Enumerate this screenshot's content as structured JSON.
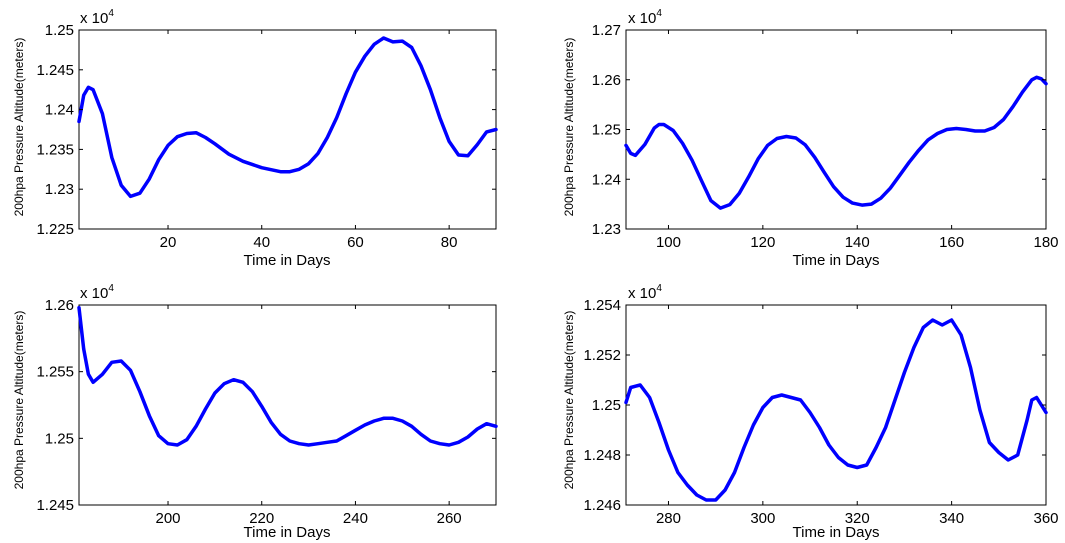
{
  "figure": {
    "background": "#ffffff",
    "line_color": "#0000ff"
  },
  "chart_data": [
    {
      "type": "line",
      "title": "",
      "xlabel": "Time in Days",
      "ylabel": "200hpa Pressure Altitude(meters)",
      "multiplier": "x 10",
      "multiplier_exp": "4",
      "xlim": [
        1,
        90
      ],
      "ylim": [
        1.225,
        1.25
      ],
      "xticks": [
        20,
        40,
        60,
        80
      ],
      "yticks": [
        1.225,
        1.23,
        1.235,
        1.24,
        1.245,
        1.25
      ],
      "ytick_labels": [
        "1.225",
        "1.23",
        "1.235",
        "1.24",
        "1.245",
        "1.25"
      ],
      "grid": false,
      "series": [
        {
          "x": [
            1,
            2,
            3,
            4,
            6,
            8,
            10,
            12,
            14,
            16,
            18,
            20,
            22,
            24,
            26,
            28,
            30,
            33,
            36,
            40,
            44,
            46,
            48,
            50,
            52,
            54,
            56,
            58,
            60,
            62,
            64,
            66,
            68,
            70,
            72,
            74,
            76,
            78,
            80,
            82,
            84,
            86,
            88,
            90
          ],
          "values": [
            1.2385,
            1.2418,
            1.2428,
            1.2425,
            1.2395,
            1.234,
            1.2305,
            1.2291,
            1.2295,
            1.2313,
            1.2337,
            1.2355,
            1.2366,
            1.237,
            1.2371,
            1.2365,
            1.2357,
            1.2344,
            1.2335,
            1.2327,
            1.2322,
            1.2322,
            1.2325,
            1.2332,
            1.2345,
            1.2365,
            1.239,
            1.242,
            1.2447,
            1.2467,
            1.2482,
            1.249,
            1.2485,
            1.2486,
            1.2478,
            1.2455,
            1.2425,
            1.239,
            1.236,
            1.2343,
            1.2342,
            1.2356,
            1.2372,
            1.2375
          ]
        }
      ]
    },
    {
      "type": "line",
      "title": "",
      "xlabel": "Time in Days",
      "ylabel": "200hpa Pressure Altitude(meters)",
      "multiplier": "x 10",
      "multiplier_exp": "4",
      "xlim": [
        91,
        180
      ],
      "ylim": [
        1.23,
        1.27
      ],
      "xticks": [
        100,
        120,
        140,
        160,
        180
      ],
      "yticks": [
        1.23,
        1.24,
        1.25,
        1.26,
        1.27
      ],
      "ytick_labels": [
        "1.23",
        "1.24",
        "1.25",
        "1.26",
        "1.27"
      ],
      "grid": false,
      "series": [
        {
          "x": [
            91,
            92,
            93,
            95,
            97,
            98,
            99,
            101,
            103,
            105,
            107,
            109,
            111,
            113,
            115,
            117,
            119,
            121,
            123,
            125,
            127,
            129,
            131,
            133,
            135,
            137,
            139,
            141,
            143,
            145,
            147,
            149,
            151,
            153,
            155,
            157,
            159,
            161,
            163,
            165,
            167,
            169,
            171,
            173,
            175,
            177,
            178,
            179,
            180
          ],
          "values": [
            1.2468,
            1.2452,
            1.2448,
            1.247,
            1.2503,
            1.251,
            1.251,
            1.2498,
            1.2472,
            1.2438,
            1.2397,
            1.2357,
            1.2342,
            1.2349,
            1.2372,
            1.2405,
            1.2441,
            1.2468,
            1.2482,
            1.2486,
            1.2483,
            1.2469,
            1.2444,
            1.2414,
            1.2385,
            1.2364,
            1.2352,
            1.2348,
            1.235,
            1.2362,
            1.2382,
            1.2408,
            1.2434,
            1.2458,
            1.2479,
            1.2492,
            1.25,
            1.2502,
            1.25,
            1.2497,
            1.2497,
            1.2504,
            1.252,
            1.2546,
            1.2575,
            1.26,
            1.2605,
            1.2602,
            1.2592
          ]
        }
      ]
    },
    {
      "type": "line",
      "title": "",
      "xlabel": "Time in Days",
      "ylabel": "200hpa Pressure Altitude(meters)",
      "multiplier": "x 10",
      "multiplier_exp": "4",
      "xlim": [
        181,
        270
      ],
      "ylim": [
        1.245,
        1.26
      ],
      "xticks": [
        200,
        220,
        240,
        260
      ],
      "yticks": [
        1.245,
        1.25,
        1.255,
        1.26
      ],
      "ytick_labels": [
        "1.245",
        "1.25",
        "1.255",
        "1.26"
      ],
      "grid": false,
      "series": [
        {
          "x": [
            181,
            182,
            183,
            184,
            186,
            188,
            190,
            192,
            194,
            196,
            198,
            200,
            202,
            204,
            206,
            208,
            210,
            212,
            214,
            216,
            218,
            220,
            222,
            224,
            226,
            228,
            230,
            232,
            234,
            236,
            238,
            240,
            242,
            244,
            246,
            248,
            250,
            252,
            254,
            256,
            258,
            260,
            262,
            264,
            266,
            268,
            270
          ],
          "values": [
            1.2598,
            1.2567,
            1.2548,
            1.2542,
            1.2548,
            1.2557,
            1.2558,
            1.2551,
            1.2535,
            1.2517,
            1.2502,
            1.2496,
            1.2495,
            1.2499,
            1.2509,
            1.2522,
            1.2534,
            1.2541,
            1.2544,
            1.2542,
            1.2535,
            1.2524,
            1.2512,
            1.2503,
            1.2498,
            1.2496,
            1.2495,
            1.2496,
            1.2497,
            1.2498,
            1.2502,
            1.2506,
            1.251,
            1.2513,
            1.2515,
            1.2515,
            1.2513,
            1.2509,
            1.2503,
            1.2498,
            1.2496,
            1.2495,
            1.2497,
            1.2501,
            1.2507,
            1.2511,
            1.2509
          ]
        }
      ]
    },
    {
      "type": "line",
      "title": "",
      "xlabel": "Time in Days",
      "ylabel": "200hpa Pressure Altitude(meters)",
      "multiplier": "x 10",
      "multiplier_exp": "4",
      "xlim": [
        271,
        360
      ],
      "ylim": [
        1.246,
        1.254
      ],
      "xticks": [
        280,
        300,
        320,
        340,
        360
      ],
      "yticks": [
        1.246,
        1.248,
        1.25,
        1.252,
        1.254
      ],
      "ytick_labels": [
        "1.246",
        "1.248",
        "1.25",
        "1.252",
        "1.254"
      ],
      "grid": false,
      "series": [
        {
          "x": [
            271,
            272,
            274,
            276,
            278,
            280,
            282,
            284,
            286,
            288,
            290,
            292,
            294,
            296,
            298,
            300,
            302,
            304,
            306,
            308,
            310,
            312,
            314,
            316,
            318,
            320,
            322,
            324,
            326,
            328,
            330,
            332,
            334,
            336,
            338,
            340,
            342,
            344,
            346,
            348,
            350,
            352,
            354,
            356,
            357,
            358,
            359,
            360
          ],
          "values": [
            1.2501,
            1.2507,
            1.2508,
            1.2503,
            1.2493,
            1.2482,
            1.2473,
            1.2468,
            1.2464,
            1.2462,
            1.2462,
            1.2466,
            1.2473,
            1.2483,
            1.2492,
            1.2499,
            1.2503,
            1.2504,
            1.2503,
            1.2502,
            1.2497,
            1.2491,
            1.2484,
            1.2479,
            1.2476,
            1.2475,
            1.2476,
            1.2483,
            1.2491,
            1.2502,
            1.2513,
            1.2523,
            1.2531,
            1.2534,
            1.2532,
            1.2534,
            1.2528,
            1.2515,
            1.2498,
            1.2485,
            1.2481,
            1.2478,
            1.248,
            1.2494,
            1.2502,
            1.2503,
            1.25,
            1.2497
          ]
        }
      ]
    }
  ]
}
